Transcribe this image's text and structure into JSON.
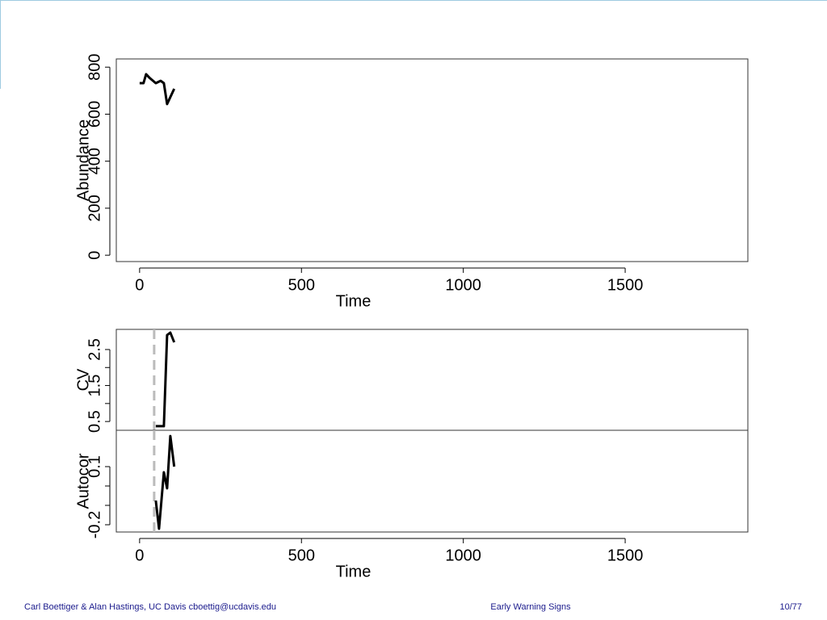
{
  "chart_data": [
    {
      "type": "line",
      "ylabel": "Abundance",
      "xlabel": "Time",
      "color": "#000000",
      "x": [
        0,
        12,
        20,
        32,
        50,
        65,
        75,
        85,
        107
      ],
      "values": [
        732,
        732,
        770,
        753,
        732,
        742,
        732,
        643,
        708
      ],
      "xlim": [
        -72,
        1879
      ],
      "ylim": [
        -27,
        835
      ],
      "xticks": [
        0,
        500,
        1000,
        1500
      ],
      "yticks": [
        0,
        200,
        400,
        600,
        800
      ]
    },
    {
      "type": "line",
      "ylabel": "CV",
      "color": "#000000",
      "x": [
        50,
        75,
        85,
        95,
        107
      ],
      "values": [
        0.37,
        0.37,
        2.9,
        2.97,
        2.7
      ],
      "xlim": [
        -72,
        1879
      ],
      "ylim": [
        0.256,
        3.06
      ],
      "yticks": [
        0.5,
        1.5,
        2.5
      ],
      "yminorticks": [
        1,
        2
      ],
      "vline": 45,
      "vline_color": "#bbbbbb"
    },
    {
      "type": "line",
      "ylabel": "Autocor",
      "xlabel": "Time",
      "color": "#000000",
      "x": [
        50,
        60,
        75,
        85,
        95,
        107
      ],
      "values": [
        -0.075,
        -0.221,
        0.071,
        -0.012,
        0.258,
        0.1
      ],
      "xlim": [
        -72,
        1879
      ],
      "ylim": [
        -0.2375,
        0.2875
      ],
      "xticks": [
        0,
        500,
        1000,
        1500
      ],
      "yticks": [
        -0.2,
        0.1
      ],
      "yminorticks": [
        -0.1,
        0
      ],
      "vline": 45,
      "vline_color": "#bbbbbb"
    }
  ],
  "footer": {
    "left": "Carl Boettiger & Alan Hastings, UC Davis cboettig@ucdavis.edu",
    "center": "Early Warning Signs",
    "right": "10/77"
  }
}
